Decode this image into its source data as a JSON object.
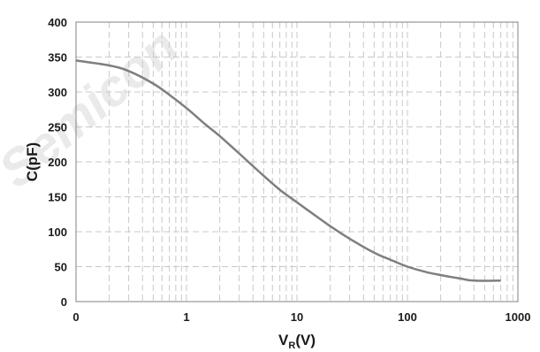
{
  "watermark": "Semicon",
  "chart_data": {
    "type": "line",
    "xlabel_main": "V",
    "xlabel_sub": "R",
    "xlabel_tail": "(V)",
    "ylabel": "C(pF)",
    "x_scale": "log",
    "xlim": [
      0.1,
      1000
    ],
    "ylim": [
      0,
      400
    ],
    "x_ticks": [
      0.1,
      1,
      10,
      100,
      1000
    ],
    "x_tick_labels": [
      "0",
      "1",
      "10",
      "100",
      "1000"
    ],
    "y_ticks": [
      0,
      50,
      100,
      150,
      200,
      250,
      300,
      350,
      400
    ],
    "y_tick_labels": [
      "0",
      "50",
      "100",
      "150",
      "200",
      "250",
      "300",
      "350",
      "400"
    ],
    "grid": true,
    "line_color": "#7f7f7f",
    "series": [
      {
        "x": [
          0.1,
          0.2,
          0.3,
          0.5,
          0.7,
          1,
          1.5,
          2,
          3,
          5,
          7,
          10,
          15,
          20,
          30,
          50,
          70,
          100,
          150,
          200,
          300,
          400,
          700
        ],
        "y": [
          345,
          338,
          330,
          312,
          296,
          277,
          253,
          237,
          212,
          180,
          160,
          142,
          122,
          108,
          90,
          70,
          60,
          50,
          42,
          38,
          33,
          30,
          30
        ]
      }
    ]
  }
}
